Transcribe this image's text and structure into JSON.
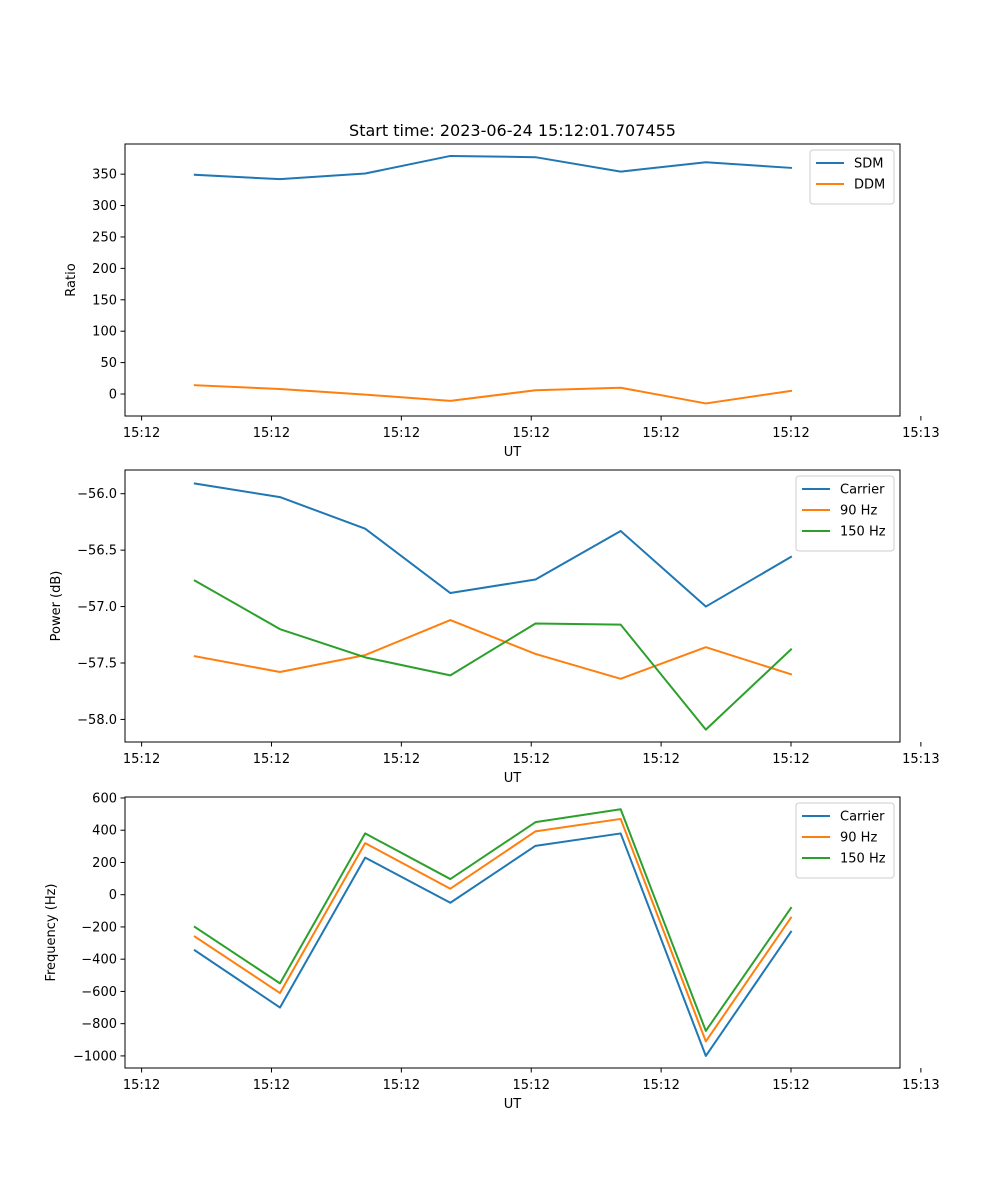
{
  "figure_title": "Start time: 2023-06-24 15:12:01.707455",
  "chart_data": [
    {
      "type": "line",
      "title": "Start time: 2023-06-24 15:12:01.707455",
      "xlabel": "UT",
      "ylabel": "Ratio",
      "x": [
        1,
        2,
        3,
        4,
        5,
        6,
        7,
        8
      ],
      "xlim": [
        0.18,
        9.28
      ],
      "x_ticks": [
        0.375,
        1.9,
        3.425,
        4.95,
        6.475,
        8.0,
        9.525
      ],
      "x_tick_labels": [
        "15:12",
        "15:12",
        "15:12",
        "15:12",
        "15:12",
        "15:12",
        "15:13"
      ],
      "ylim": [
        -35,
        398
      ],
      "y_ticks": [
        0,
        50,
        100,
        150,
        200,
        250,
        300,
        350
      ],
      "y_tick_labels": [
        "0",
        "50",
        "100",
        "150",
        "200",
        "250",
        "300",
        "350"
      ],
      "legend_position": "top-right",
      "series": [
        {
          "name": "SDM",
          "color": "#1f77b4",
          "values": [
            349,
            342,
            351,
            379,
            377,
            354,
            369,
            360
          ]
        },
        {
          "name": "DDM",
          "color": "#ff7f0e",
          "values": [
            14,
            8,
            -1,
            -11,
            6,
            10,
            -15,
            5
          ]
        }
      ]
    },
    {
      "type": "line",
      "xlabel": "UT",
      "ylabel": "Power (dB)",
      "x": [
        1,
        2,
        3,
        4,
        5,
        6,
        7,
        8
      ],
      "xlim": [
        0.18,
        9.28
      ],
      "x_ticks": [
        0.375,
        1.9,
        3.425,
        4.95,
        6.475,
        8.0,
        9.525
      ],
      "x_tick_labels": [
        "15:12",
        "15:12",
        "15:12",
        "15:12",
        "15:12",
        "15:12",
        "15:13"
      ],
      "ylim": [
        -58.2,
        -55.79
      ],
      "y_ticks": [
        -58.0,
        -57.5,
        -57.0,
        -56.5,
        -56.0
      ],
      "y_tick_labels": [
        "−58.0",
        "−57.5",
        "−57.0",
        "−56.5",
        "−56.0"
      ],
      "legend_position": "top-right",
      "series": [
        {
          "name": "Carrier",
          "color": "#1f77b4",
          "values": [
            -55.91,
            -56.03,
            -56.31,
            -56.88,
            -56.76,
            -56.33,
            -57.0,
            -56.56
          ]
        },
        {
          "name": "90 Hz",
          "color": "#ff7f0e",
          "values": [
            -57.44,
            -57.58,
            -57.43,
            -57.12,
            -57.42,
            -57.64,
            -57.36,
            -57.6
          ]
        },
        {
          "name": "150 Hz",
          "color": "#2ca02c",
          "values": [
            -56.77,
            -57.2,
            -57.45,
            -57.61,
            -57.15,
            -57.16,
            -58.09,
            -57.38
          ]
        }
      ]
    },
    {
      "type": "line",
      "xlabel": "UT",
      "ylabel": "Frequency (Hz)",
      "x": [
        1,
        2,
        3,
        4,
        5,
        6,
        7,
        8
      ],
      "xlim": [
        0.18,
        9.28
      ],
      "x_ticks": [
        0.375,
        1.9,
        3.425,
        4.95,
        6.475,
        8.0,
        9.525
      ],
      "x_tick_labels": [
        "15:12",
        "15:12",
        "15:12",
        "15:12",
        "15:12",
        "15:12",
        "15:13"
      ],
      "ylim": [
        -1075,
        606
      ],
      "y_ticks": [
        -1000,
        -800,
        -600,
        -400,
        -200,
        0,
        200,
        400,
        600
      ],
      "y_tick_labels": [
        "−1000",
        "−800",
        "−600",
        "−400",
        "−200",
        "0",
        "200",
        "400",
        "600"
      ],
      "legend_position": "top-right",
      "series": [
        {
          "name": "Carrier",
          "color": "#1f77b4",
          "values": [
            -345,
            -700,
            230,
            -50,
            303,
            380,
            -1000,
            -230
          ]
        },
        {
          "name": "90 Hz",
          "color": "#ff7f0e",
          "values": [
            -260,
            -610,
            320,
            37,
            393,
            470,
            -910,
            -142
          ]
        },
        {
          "name": "150 Hz",
          "color": "#2ca02c",
          "values": [
            -200,
            -550,
            380,
            97,
            450,
            530,
            -845,
            -82
          ]
        }
      ]
    }
  ]
}
